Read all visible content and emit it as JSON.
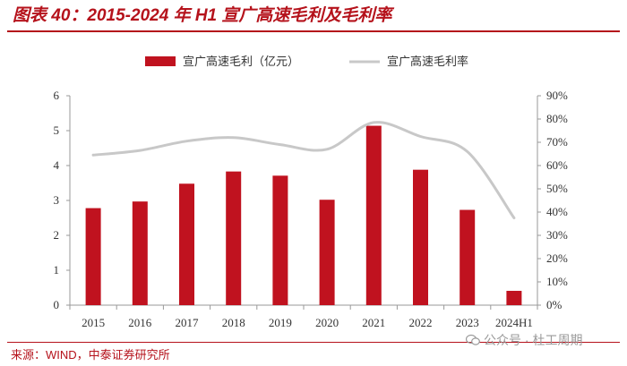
{
  "header": {
    "title": "图表 40：2015-2024 年 H1 宣广高速毛利及毛利率"
  },
  "footer": {
    "source": "来源：WIND，中泰证券研究所",
    "watermark": "公众号 · 杜工周期"
  },
  "colors": {
    "accent": "#b5121b",
    "bar": "#c0121f",
    "line": "#c8c8c8",
    "axis": "#999999"
  },
  "chart_data": {
    "type": "bar",
    "categories": [
      "2015",
      "2016",
      "2017",
      "2018",
      "2019",
      "2020",
      "2021",
      "2022",
      "2023",
      "2024H1"
    ],
    "series": [
      {
        "name": "宣广高速毛利（亿元）",
        "type": "bar",
        "axis": "left",
        "values": [
          2.78,
          2.97,
          3.48,
          3.83,
          3.71,
          3.02,
          5.14,
          3.88,
          2.73,
          0.41
        ]
      },
      {
        "name": "宣广高速毛利率",
        "type": "line",
        "axis": "right",
        "smooth": true,
        "values": [
          0.645,
          0.665,
          0.705,
          0.72,
          0.69,
          0.67,
          0.785,
          0.725,
          0.66,
          0.375
        ]
      }
    ],
    "y_left": {
      "min": 0,
      "max": 6,
      "ticks": [
        "0",
        "1",
        "2",
        "3",
        "4",
        "5",
        "6"
      ]
    },
    "y_right": {
      "min": 0,
      "max": 0.9,
      "ticks": [
        "0%",
        "10%",
        "20%",
        "30%",
        "40%",
        "50%",
        "60%",
        "70%",
        "80%",
        "90%"
      ]
    },
    "legend": "top-center"
  }
}
